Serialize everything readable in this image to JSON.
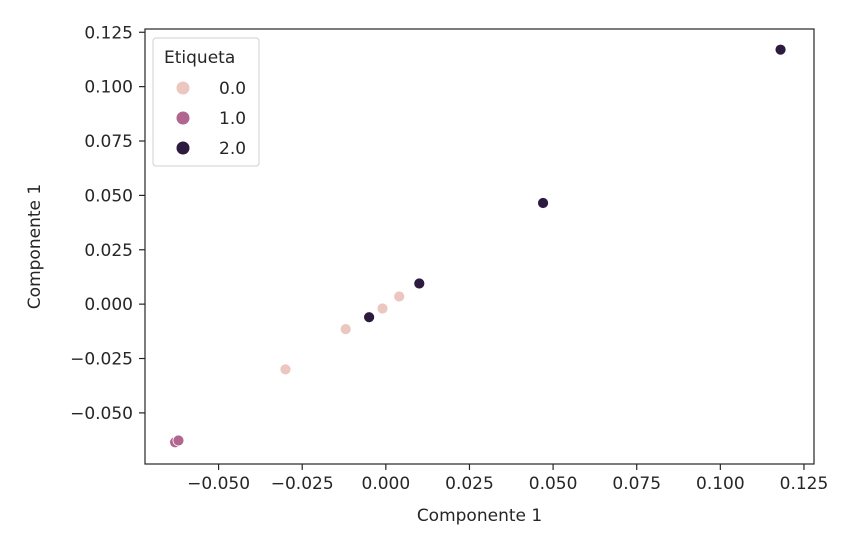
{
  "chart_data": {
    "type": "scatter",
    "title": "",
    "xlabel": "Componente 1",
    "ylabel": "Componente 1",
    "xlim": [
      -0.072,
      0.128
    ],
    "ylim": [
      -0.0735,
      0.1265
    ],
    "xticks": [
      -0.05,
      -0.025,
      0.0,
      0.025,
      0.05,
      0.075,
      0.1,
      0.125
    ],
    "xtick_labels": [
      "−0.050",
      "−0.025",
      "0.000",
      "0.025",
      "0.050",
      "0.075",
      "0.100",
      "0.125"
    ],
    "yticks": [
      -0.05,
      -0.025,
      0.0,
      0.025,
      0.05,
      0.075,
      0.1,
      0.125
    ],
    "ytick_labels": [
      "−0.050",
      "−0.025",
      "0.000",
      "0.025",
      "0.050",
      "0.075",
      "0.100",
      "0.125"
    ],
    "grid": false,
    "legend": {
      "title": "Etiqueta",
      "placement": "top-left"
    },
    "series": [
      {
        "name": "0.0",
        "color": "#ebc7c0",
        "points": [
          {
            "x": -0.03,
            "y": -0.03
          },
          {
            "x": -0.012,
            "y": -0.0115
          },
          {
            "x": -0.001,
            "y": -0.002
          },
          {
            "x": 0.004,
            "y": 0.0035
          }
        ]
      },
      {
        "name": "1.0",
        "color": "#b0668e",
        "points": [
          {
            "x": -0.063,
            "y": -0.0635
          },
          {
            "x": -0.062,
            "y": -0.0627
          }
        ]
      },
      {
        "name": "2.0",
        "color": "#2c1b3f",
        "points": [
          {
            "x": -0.005,
            "y": -0.006
          },
          {
            "x": 0.01,
            "y": 0.0095
          },
          {
            "x": 0.047,
            "y": 0.0465
          },
          {
            "x": 0.118,
            "y": 0.117
          }
        ]
      }
    ]
  }
}
